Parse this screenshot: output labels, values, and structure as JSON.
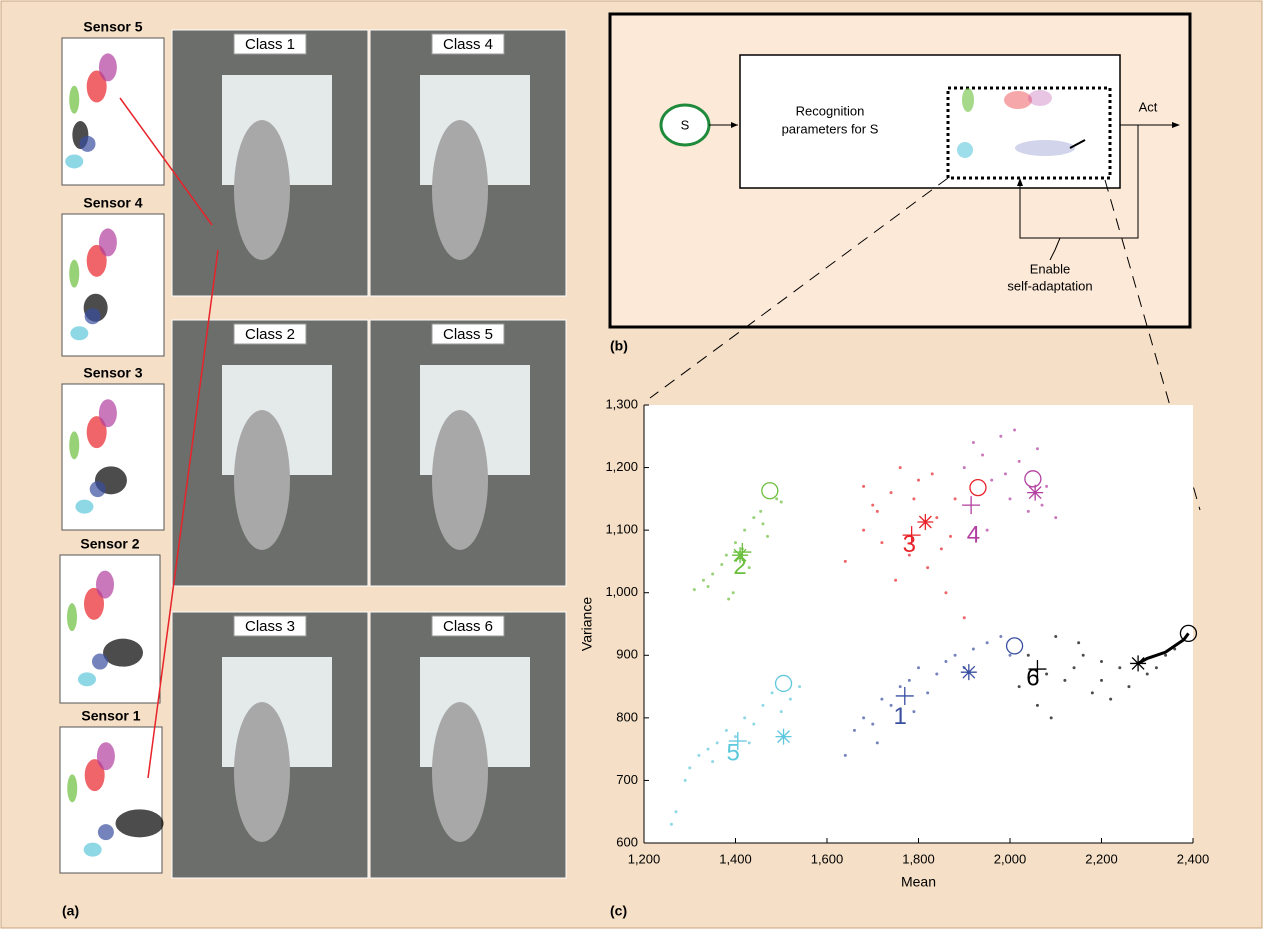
{
  "panel_labels": [
    "(a)",
    "(b)",
    "(c)"
  ],
  "sensors": [
    "Sensor 5",
    "Sensor 4",
    "Sensor 3",
    "Sensor 2",
    "Sensor 1"
  ],
  "photos": [
    "Class 1",
    "Class 4",
    "Class 2",
    "Class 5",
    "Class 3",
    "Class 6"
  ],
  "diagram": {
    "source": "S",
    "block": [
      "Recognition",
      "parameters for S"
    ],
    "output": "Act",
    "feedback": [
      "Enable",
      "self-adaptation"
    ]
  },
  "chart_data": {
    "type": "scatter",
    "x_label": "Mean",
    "y_label": "Variance",
    "xlim": [
      1200,
      2400
    ],
    "ylim": [
      600,
      1300
    ],
    "xticks": [
      {
        "value": 1200,
        "label": "1,200"
      },
      {
        "value": 1400,
        "label": "1,400"
      },
      {
        "value": 1600,
        "label": "1,600"
      },
      {
        "value": 1800,
        "label": "1,800"
      },
      {
        "value": 2000,
        "label": "2,000"
      },
      {
        "value": 2200,
        "label": "2,200"
      },
      {
        "value": 2400,
        "label": "2,400"
      }
    ],
    "yticks": [
      {
        "value": 600,
        "label": "600"
      },
      {
        "value": 700,
        "label": "700"
      },
      {
        "value": 800,
        "label": "800"
      },
      {
        "value": 900,
        "label": "900"
      },
      {
        "value": 1000,
        "label": "1,000"
      },
      {
        "value": 1100,
        "label": "1,100"
      },
      {
        "value": 1200,
        "label": "1,200"
      },
      {
        "value": 1300,
        "label": "1,300"
      }
    ],
    "series": [
      {
        "color": "#3a4fa0",
        "x": [
          1640,
          1660,
          1680,
          1700,
          1720,
          1740,
          1760,
          1780,
          1800,
          1820,
          1840,
          1860,
          1880,
          1900,
          1920,
          1950,
          1980,
          2000,
          1710,
          1790
        ],
        "values": [
          740,
          780,
          800,
          790,
          830,
          820,
          850,
          860,
          880,
          840,
          870,
          890,
          900,
          880,
          910,
          920,
          930,
          900,
          760,
          810
        ],
        "markers": {
          "circle": [
            2010,
            915
          ],
          "star": [
            1910,
            873
          ],
          "plus": [
            1770,
            835
          ]
        }
      },
      {
        "color": "#6bbf3c",
        "x": [
          1310,
          1330,
          1350,
          1370,
          1380,
          1395,
          1400,
          1420,
          1430,
          1440,
          1455,
          1470,
          1490,
          1500,
          1385,
          1415,
          1460,
          1340
        ],
        "values": [
          1005,
          1020,
          1030,
          1045,
          1060,
          1000,
          1080,
          1100,
          1040,
          1120,
          1130,
          1090,
          1150,
          1145,
          990,
          1070,
          1110,
          1010
        ],
        "markers": {
          "circle": [
            1475,
            1163
          ],
          "star": [
            1410,
            1060
          ],
          "plus": [
            1415,
            1065
          ]
        }
      },
      {
        "color": "#e8232a",
        "x": [
          1640,
          1680,
          1700,
          1720,
          1740,
          1760,
          1780,
          1800,
          1820,
          1840,
          1860,
          1880,
          1900,
          1750,
          1830,
          1870,
          1710,
          1790,
          1850,
          1680
        ],
        "values": [
          1050,
          1100,
          1140,
          1080,
          1160,
          1200,
          1060,
          1180,
          1040,
          1120,
          1000,
          1150,
          960,
          1020,
          1190,
          1090,
          1130,
          1150,
          1070,
          1170
        ],
        "markers": {
          "circle": [
            1930,
            1168
          ],
          "star": [
            1815,
            1113
          ],
          "plus": [
            1785,
            1092
          ]
        }
      },
      {
        "color": "#b23fa0",
        "x": [
          1900,
          1940,
          1960,
          1980,
          2000,
          2020,
          2040,
          2060,
          2080,
          2100,
          1950,
          2010,
          1990,
          2070,
          1920
        ],
        "values": [
          1200,
          1220,
          1180,
          1250,
          1150,
          1210,
          1130,
          1230,
          1170,
          1120,
          1100,
          1260,
          1190,
          1140,
          1240
        ],
        "markers": {
          "circle": [
            2050,
            1182
          ],
          "star": [
            2055,
            1160
          ],
          "plus": [
            1915,
            1140
          ]
        }
      },
      {
        "color": "#5ec8dc",
        "x": [
          1260,
          1270,
          1290,
          1300,
          1320,
          1340,
          1360,
          1380,
          1400,
          1420,
          1440,
          1460,
          1480,
          1500,
          1520,
          1540,
          1350,
          1430
        ],
        "values": [
          630,
          650,
          700,
          720,
          740,
          750,
          760,
          780,
          770,
          800,
          790,
          820,
          840,
          810,
          830,
          850,
          730,
          760
        ],
        "markers": {
          "circle": [
            1505,
            855
          ],
          "star": [
            1505,
            770
          ],
          "plus": [
            1405,
            763
          ]
        }
      },
      {
        "color": "#000000",
        "x": [
          2020,
          2040,
          2060,
          2080,
          2100,
          2120,
          2140,
          2160,
          2180,
          2200,
          2220,
          2240,
          2260,
          2300,
          2320,
          2340,
          2360,
          2090,
          2150,
          2200
        ],
        "values": [
          850,
          900,
          820,
          870,
          930,
          860,
          880,
          900,
          840,
          860,
          830,
          880,
          850,
          870,
          880,
          900,
          910,
          800,
          920,
          890
        ],
        "markers": {
          "circle": [
            2390,
            935
          ],
          "star": [
            2280,
            887
          ],
          "plus": [
            2060,
            878
          ]
        },
        "trajectory": {
          "x": [
            2280,
            2300,
            2320,
            2340,
            2360,
            2380,
            2390
          ],
          "values": [
            887,
            895,
            900,
            905,
            915,
            925,
            935
          ]
        }
      }
    ],
    "annotations": [
      {
        "text": "1",
        "x": 1760,
        "y": 800,
        "color": "#3a4fa0"
      },
      {
        "text": "2",
        "x": 1410,
        "y": 1040,
        "color": "#6bbf3c"
      },
      {
        "text": "3",
        "x": 1780,
        "y": 1075,
        "color": "#e8232a"
      },
      {
        "text": "4",
        "x": 1920,
        "y": 1090,
        "color": "#b23fa0"
      },
      {
        "text": "5",
        "x": 1395,
        "y": 742,
        "color": "#5ec8dc"
      },
      {
        "text": "6",
        "x": 2050,
        "y": 862,
        "color": "#000000"
      }
    ]
  }
}
